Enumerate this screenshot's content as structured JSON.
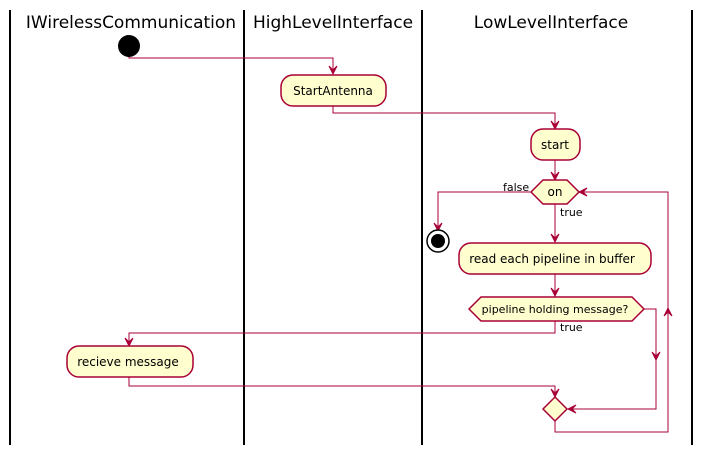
{
  "diagram": {
    "type": "uml-activity-swimlane",
    "lanes": [
      {
        "id": "lane-iwireless",
        "title": "IWirelessCommunication"
      },
      {
        "id": "lane-highlevel",
        "title": "HighLevelInterface"
      },
      {
        "id": "lane-lowlevel",
        "title": "LowLevelInterface"
      }
    ],
    "activities": {
      "start_antenna": "StartAntenna",
      "start": "start",
      "read_pipelines": "read each pipeline in buffer",
      "receive_message": "recieve message"
    },
    "decisions": {
      "loop_condition": "on",
      "pipeline_check": "pipeline holding message?"
    },
    "edge_labels": {
      "loop_false": "false",
      "loop_true": "true",
      "pipeline_true": "true"
    },
    "colors": {
      "activity_fill": "#FEFECE",
      "border": "#A80036",
      "lane_divider": "#000000"
    }
  }
}
